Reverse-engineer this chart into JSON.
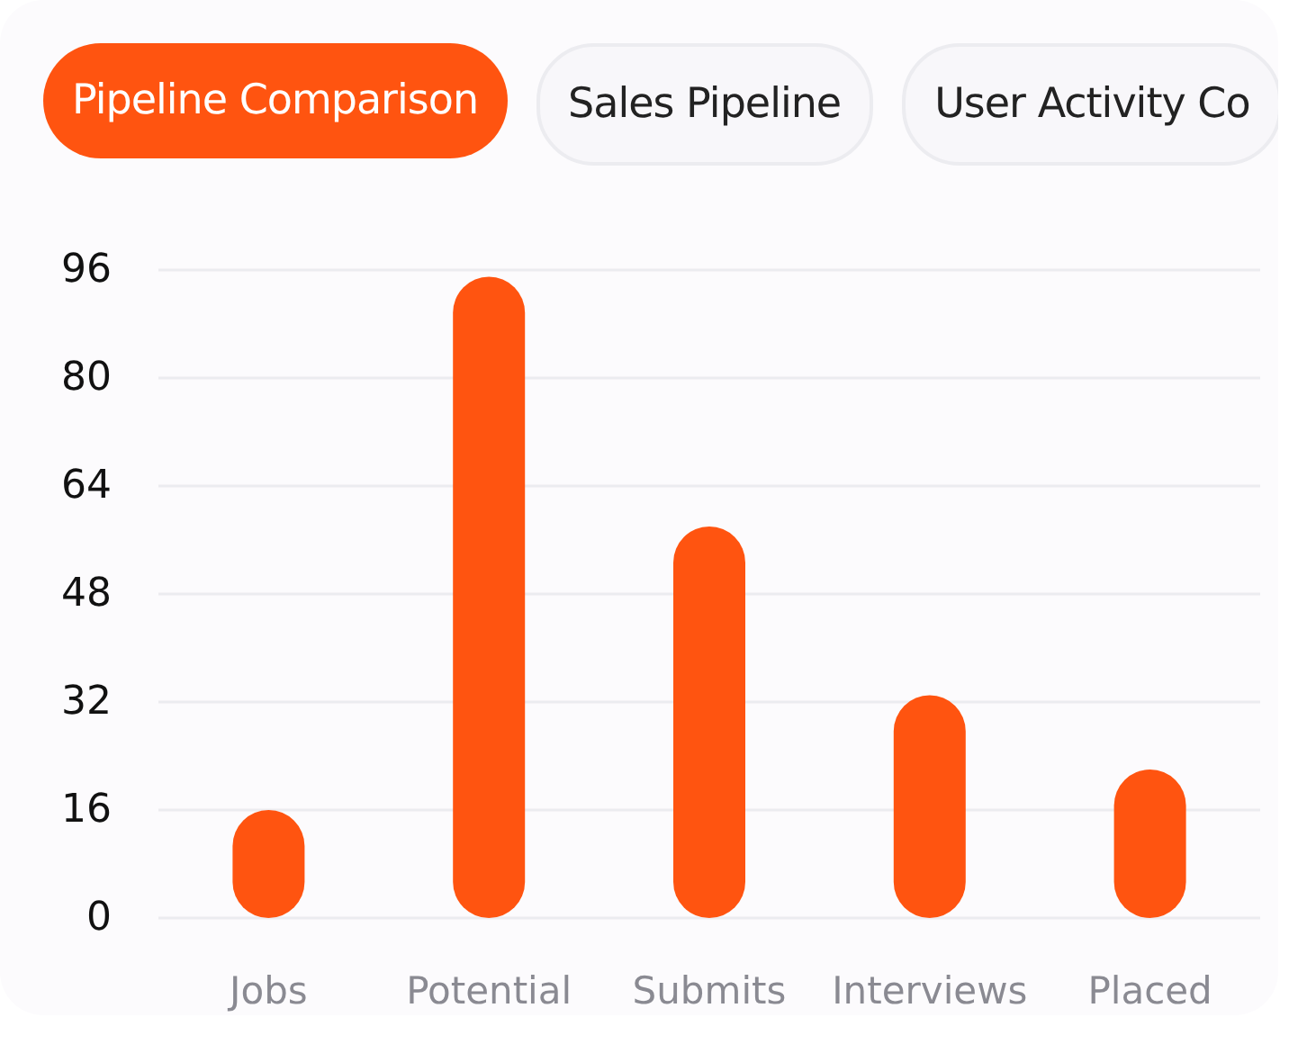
{
  "chart_data": {
    "type": "bar",
    "annotations": [
      "Pipeline Comparison",
      "Sales Pipeline",
      "User Activity Co"
    ],
    "categories": [
      "Jobs",
      "Potential",
      "Submits",
      "Interviews",
      "Placed"
    ],
    "values": [
      16,
      95,
      58,
      33,
      22
    ],
    "color": "#ff5410",
    "ylim": [
      0,
      96
    ],
    "yticks": [
      0,
      16,
      32,
      48,
      64,
      80,
      96
    ],
    "grid": "y"
  }
}
